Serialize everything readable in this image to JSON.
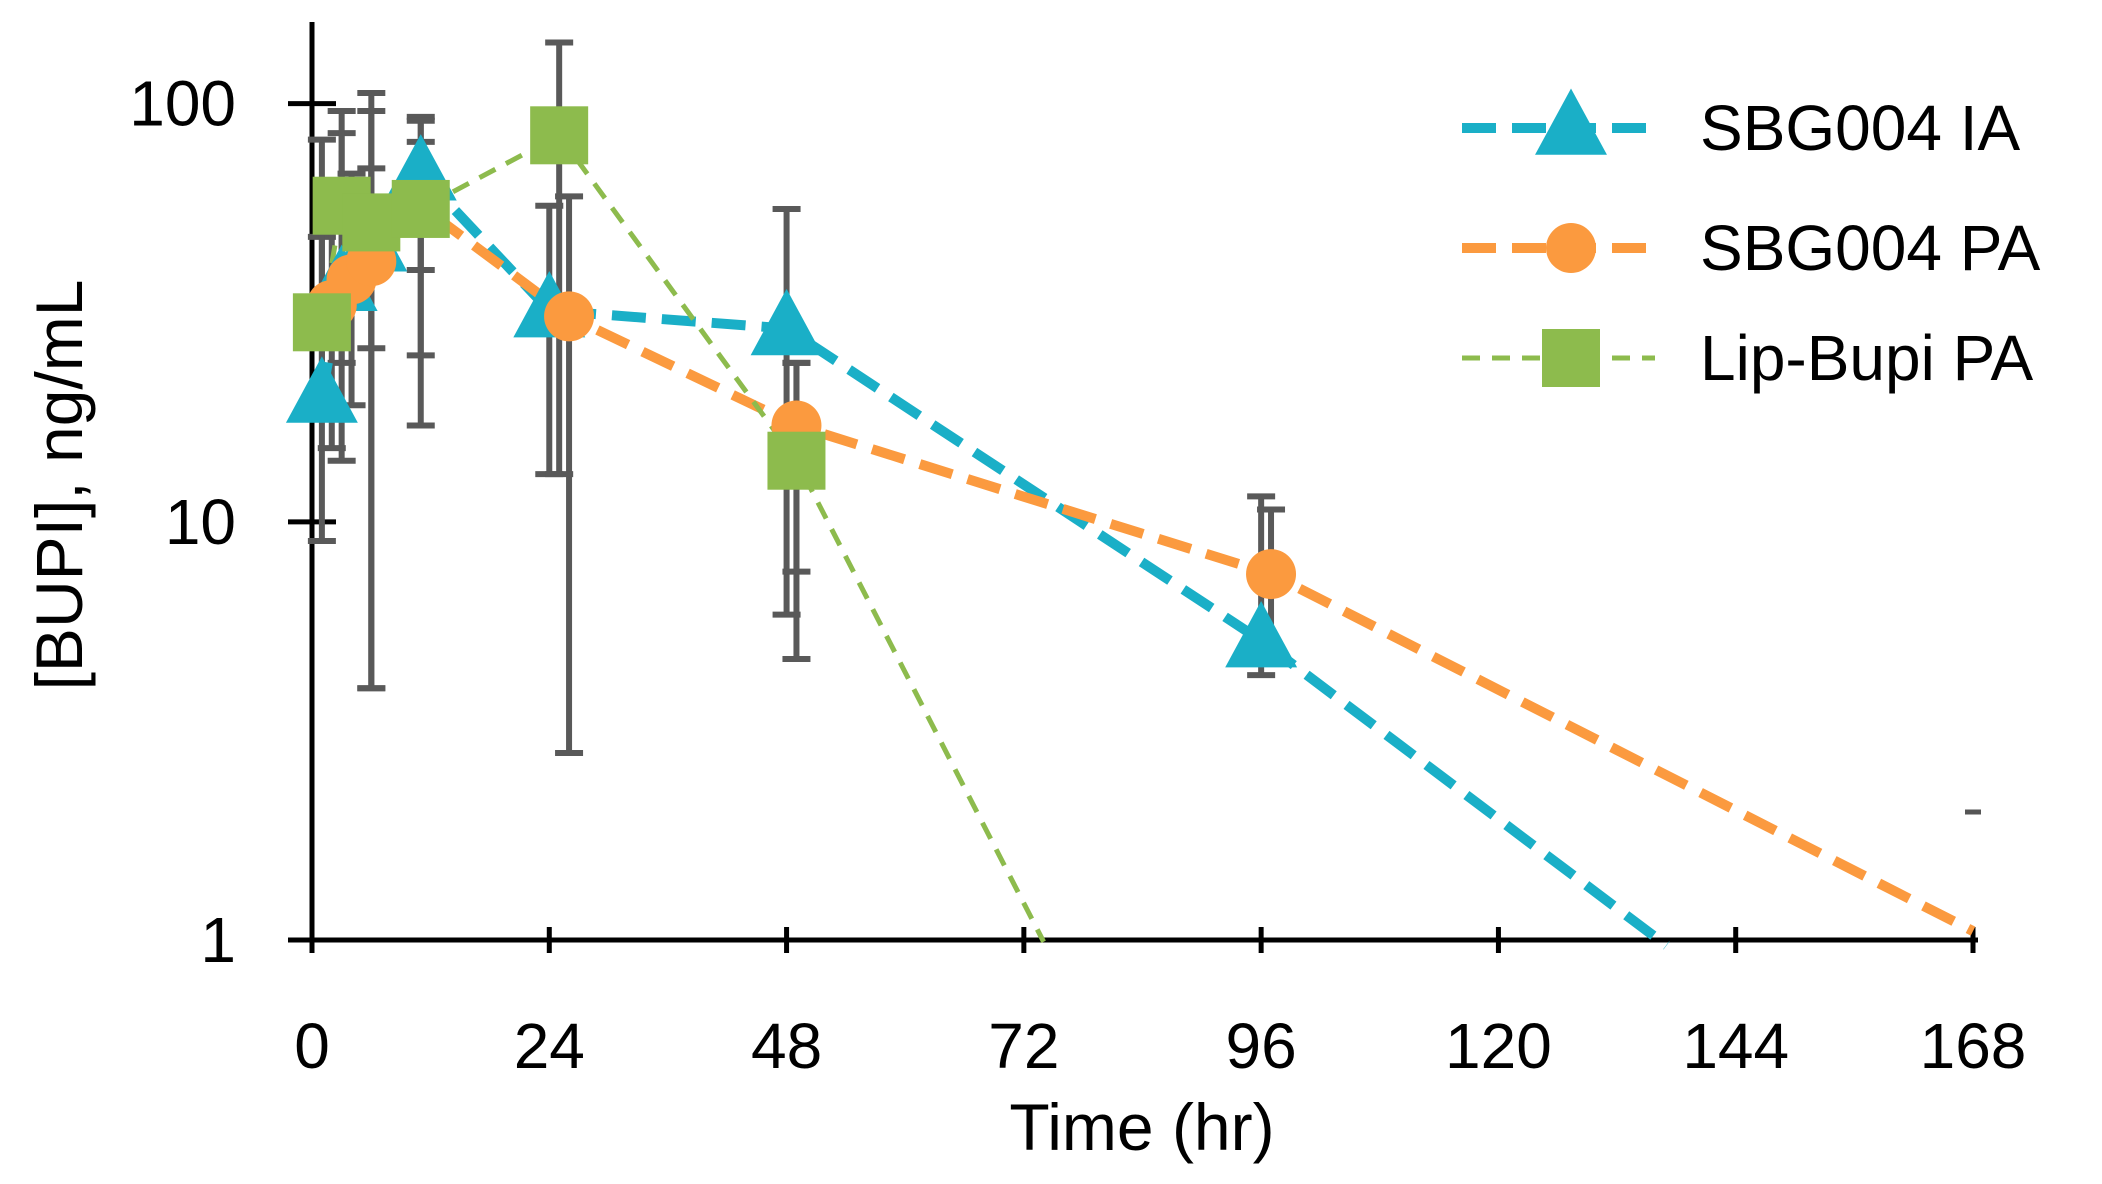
{
  "chart_data": {
    "type": "line",
    "title": "",
    "xlabel": "Time (hr)",
    "ylabel": "[BUPI], ng/mL",
    "xscale": "linear",
    "yscale": "log",
    "xlim": [
      0,
      168
    ],
    "ylim": [
      1,
      150
    ],
    "x_ticks": [
      0,
      24,
      48,
      72,
      96,
      120,
      144,
      168
    ],
    "x_tick_labels": [
      "0",
      "24",
      "48",
      "72",
      "96",
      "120",
      "144",
      "168"
    ],
    "y_ticks": [
      1,
      10,
      100
    ],
    "y_tick_labels": [
      "1",
      "10",
      "100"
    ],
    "legend_position": "top-right",
    "series": [
      {
        "name": "SBG004 IA",
        "color": "#1aafc7",
        "marker": "triangle",
        "line_style": "dashed-thick",
        "x": [
          1,
          3,
          6,
          11,
          24,
          48,
          96
        ],
        "y": [
          20,
          37,
          46,
          68,
          32,
          29,
          5.2
        ],
        "err_low": [
          9,
          14,
          4,
          17,
          13,
          6,
          4.3
        ],
        "err_high": [
          48,
          85,
          96,
          93,
          57,
          56,
          11.5
        ],
        "trend_end": {
          "x": 137,
          "y": 0.97
        }
      },
      {
        "name": "SBG004 PA",
        "color": "#fb9a3f",
        "marker": "circle",
        "line_style": "dashed-thick",
        "x": [
          2,
          4,
          6,
          11,
          26,
          49,
          97
        ],
        "y": [
          33,
          38,
          42,
          57,
          31,
          17,
          7.5
        ],
        "err_low": [
          15,
          19,
          26,
          40,
          2.8,
          7.6,
          4.6
        ],
        "err_high": [
          60,
          68,
          70,
          81,
          60,
          24,
          10.7
        ],
        "trend_end": {
          "x": 168,
          "y": 1.05
        }
      },
      {
        "name": "Lip-Bupi PA",
        "color": "#8dbb4d",
        "marker": "square",
        "line_style": "dashed-thin",
        "x": [
          1,
          3,
          6,
          11,
          25,
          49
        ],
        "y": [
          30,
          57,
          52,
          56,
          84,
          14
        ],
        "err_low": [
          18,
          24,
          4,
          25,
          13,
          4.7
        ],
        "err_high": [
          82,
          96,
          106,
          91,
          140,
          24
        ],
        "trend_end": {
          "x": 74,
          "y": 0.99
        }
      }
    ]
  }
}
